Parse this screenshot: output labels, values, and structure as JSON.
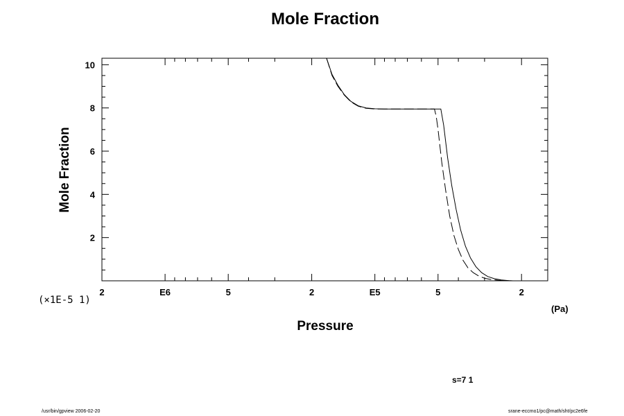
{
  "chart_data": {
    "type": "line",
    "title": "Mole Fraction",
    "xlabel": "Pressure",
    "ylabel": "Mole Fraction",
    "x_unit": "(Pa)",
    "y_scale_note": "(×1E-5 1)",
    "x_scale": "log",
    "xlim": [
      2000000,
      15000
    ],
    "ylim": [
      0,
      10.3
    ],
    "grid": false,
    "x_ticks": [
      {
        "value": 2000000,
        "label": "2"
      },
      {
        "value": 1000000,
        "label": "E6"
      },
      {
        "value": 500000,
        "label": "5"
      },
      {
        "value": 200000,
        "label": "2"
      },
      {
        "value": 100000,
        "label": "E5"
      },
      {
        "value": 50000,
        "label": "5"
      },
      {
        "value": 20000,
        "label": "2"
      }
    ],
    "x_minor_ticks": [
      900000,
      800000,
      700000,
      600000,
      400000,
      300000,
      90000,
      80000,
      70000,
      60000,
      40000,
      30000
    ],
    "y_ticks": [
      {
        "value": 2,
        "label": "2"
      },
      {
        "value": 4,
        "label": "4"
      },
      {
        "value": 6,
        "label": "6"
      },
      {
        "value": 8,
        "label": "8"
      },
      {
        "value": 10,
        "label": "10"
      }
    ],
    "y_minor_step": 0.5,
    "series": [
      {
        "style": "solid",
        "x": [
          170000,
          160000,
          150000,
          140000,
          130000,
          120000,
          110000,
          100000,
          90000,
          80000,
          70000,
          60000,
          55000,
          50000,
          48500,
          47000,
          45000,
          43000,
          41000,
          39000,
          37000,
          35000,
          33000,
          31000,
          29000,
          27000,
          25000,
          23000,
          22000
        ],
        "y": [
          10.3,
          9.55,
          9.05,
          8.62,
          8.3,
          8.1,
          8.0,
          7.96,
          7.95,
          7.95,
          7.95,
          7.95,
          7.95,
          7.95,
          7.95,
          7.2,
          5.7,
          4.4,
          3.3,
          2.35,
          1.6,
          1.05,
          0.65,
          0.38,
          0.2,
          0.1,
          0.04,
          0.01,
          0.0
        ]
      },
      {
        "style": "dashed",
        "x": [
          170000,
          160000,
          150000,
          140000,
          130000,
          120000,
          110000,
          100000,
          90000,
          80000,
          70000,
          60000,
          55000,
          52000,
          51000,
          50000,
          48000,
          46000,
          44000,
          42000,
          40000,
          38000,
          36000,
          34000,
          32000,
          30000,
          28000,
          26000,
          24000,
          22000
        ],
        "y": [
          10.3,
          9.5,
          9.0,
          8.6,
          8.28,
          8.08,
          7.98,
          7.95,
          7.95,
          7.95,
          7.95,
          7.95,
          7.95,
          7.95,
          7.6,
          7.0,
          5.5,
          4.2,
          3.0,
          2.1,
          1.45,
          0.95,
          0.6,
          0.38,
          0.22,
          0.12,
          0.06,
          0.03,
          0.01,
          0.0
        ]
      }
    ]
  },
  "annotations": {
    "s_value": "s=7 1",
    "footer_left": "/usr/bin/gpview 2006-02-20",
    "footer_right": "srane-eccmo1/pc@math/sht/pc2e6fe"
  }
}
